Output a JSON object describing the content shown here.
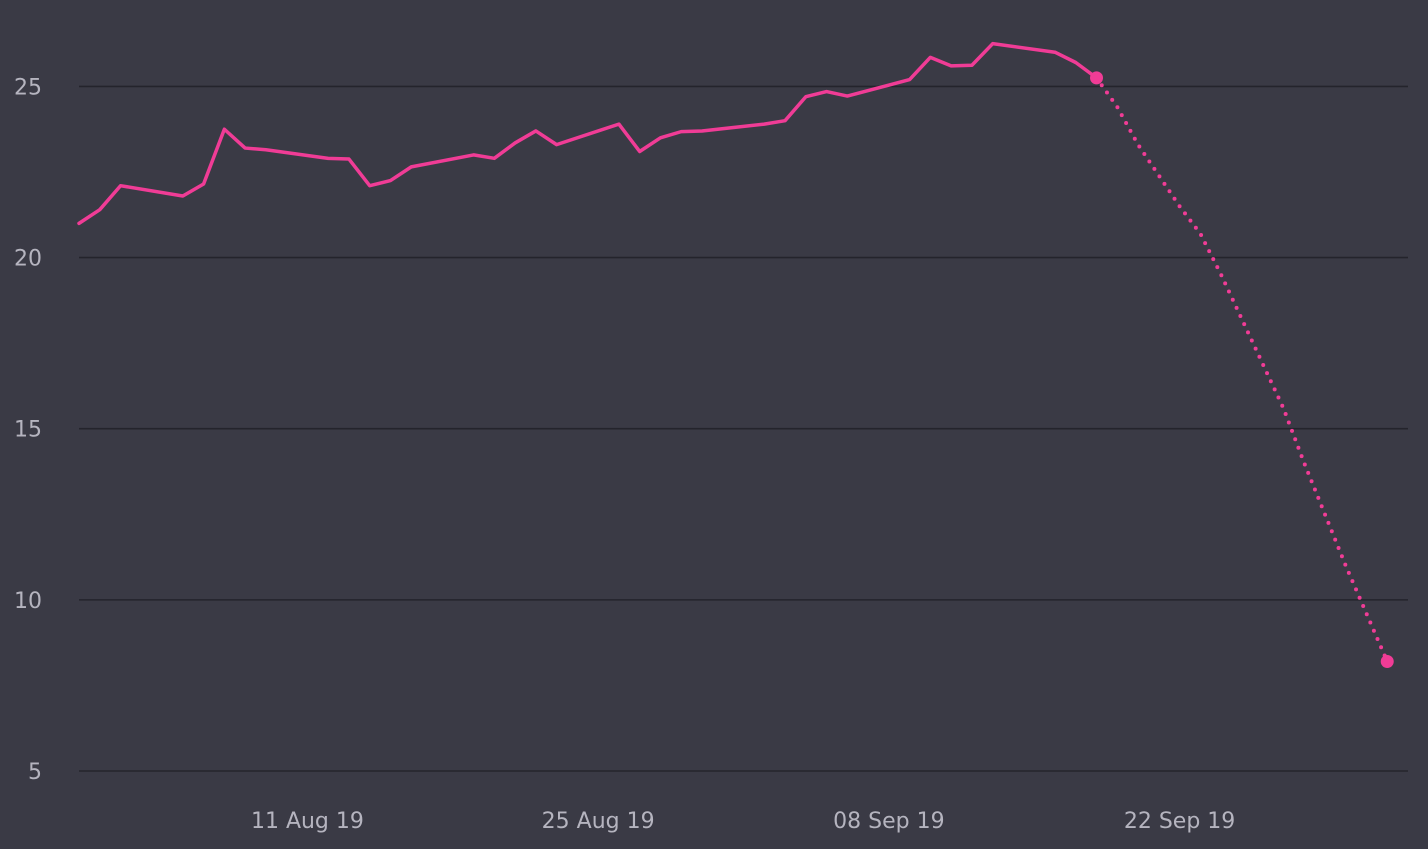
{
  "chart_data": {
    "type": "line",
    "title": "",
    "xlabel": "",
    "ylabel": "",
    "ylim": [
      5,
      27
    ],
    "y_ticks": [
      5,
      10,
      15,
      20,
      25
    ],
    "x_ticks": [
      {
        "date": "2019-08-11",
        "label": "11 Aug 19"
      },
      {
        "date": "2019-08-25",
        "label": "25 Aug 19"
      },
      {
        "date": "2019-09-08",
        "label": "08 Sep 19"
      },
      {
        "date": "2019-09-22",
        "label": "22 Sep 19"
      }
    ],
    "xlim": [
      "2019-07-31",
      "2019-10-03"
    ],
    "grid": "horizontal",
    "legend": "none",
    "colors": {
      "background": "#3a3a45",
      "grid": "#24242c",
      "tick_text": "#b5b4bf",
      "series": "#f03c96"
    },
    "series": [
      {
        "style": "solid",
        "points": [
          [
            "2019-07-31",
            21.0
          ],
          [
            "2019-08-01",
            21.4
          ],
          [
            "2019-08-02",
            22.1
          ],
          [
            "2019-08-05",
            21.8
          ],
          [
            "2019-08-06",
            22.15
          ],
          [
            "2019-08-07",
            23.75
          ],
          [
            "2019-08-08",
            23.2
          ],
          [
            "2019-08-09",
            23.15
          ],
          [
            "2019-08-12",
            22.9
          ],
          [
            "2019-08-13",
            22.88
          ],
          [
            "2019-08-14",
            22.1
          ],
          [
            "2019-08-15",
            22.25
          ],
          [
            "2019-08-16",
            22.65
          ],
          [
            "2019-08-19",
            23.0
          ],
          [
            "2019-08-20",
            22.9
          ],
          [
            "2019-08-21",
            23.35
          ],
          [
            "2019-08-22",
            23.7
          ],
          [
            "2019-08-23",
            23.3
          ],
          [
            "2019-08-26",
            23.9
          ],
          [
            "2019-08-27",
            23.1
          ],
          [
            "2019-08-28",
            23.5
          ],
          [
            "2019-08-29",
            23.68
          ],
          [
            "2019-08-30",
            23.7
          ],
          [
            "2019-09-02",
            23.9
          ],
          [
            "2019-09-03",
            24.0
          ],
          [
            "2019-09-04",
            24.7
          ],
          [
            "2019-09-05",
            24.85
          ],
          [
            "2019-09-06",
            24.72
          ],
          [
            "2019-09-09",
            25.2
          ],
          [
            "2019-09-10",
            25.85
          ],
          [
            "2019-09-11",
            25.6
          ],
          [
            "2019-09-12",
            25.62
          ],
          [
            "2019-09-13",
            26.25
          ],
          [
            "2019-09-16",
            26.0
          ],
          [
            "2019-09-17",
            25.7
          ],
          [
            "2019-09-18",
            25.25
          ]
        ]
      },
      {
        "style": "dotted",
        "points": [
          [
            "2019-09-18",
            25.25
          ],
          [
            "2019-09-19",
            24.4
          ],
          [
            "2019-09-20",
            23.3
          ],
          [
            "2019-09-21",
            22.4
          ],
          [
            "2019-09-22",
            21.5
          ],
          [
            "2019-09-23",
            20.7
          ],
          [
            "2019-09-24",
            19.5
          ],
          [
            "2019-09-25",
            18.2
          ],
          [
            "2019-09-26",
            16.9
          ],
          [
            "2019-09-27",
            15.6
          ],
          [
            "2019-09-28",
            14.0
          ],
          [
            "2019-09-29",
            12.5
          ],
          [
            "2019-09-30",
            11.0
          ],
          [
            "2019-10-01",
            9.6
          ],
          [
            "2019-10-02",
            8.2
          ]
        ]
      }
    ],
    "markers": [
      [
        "2019-09-18",
        25.25
      ],
      [
        "2019-10-02",
        8.2
      ]
    ]
  }
}
